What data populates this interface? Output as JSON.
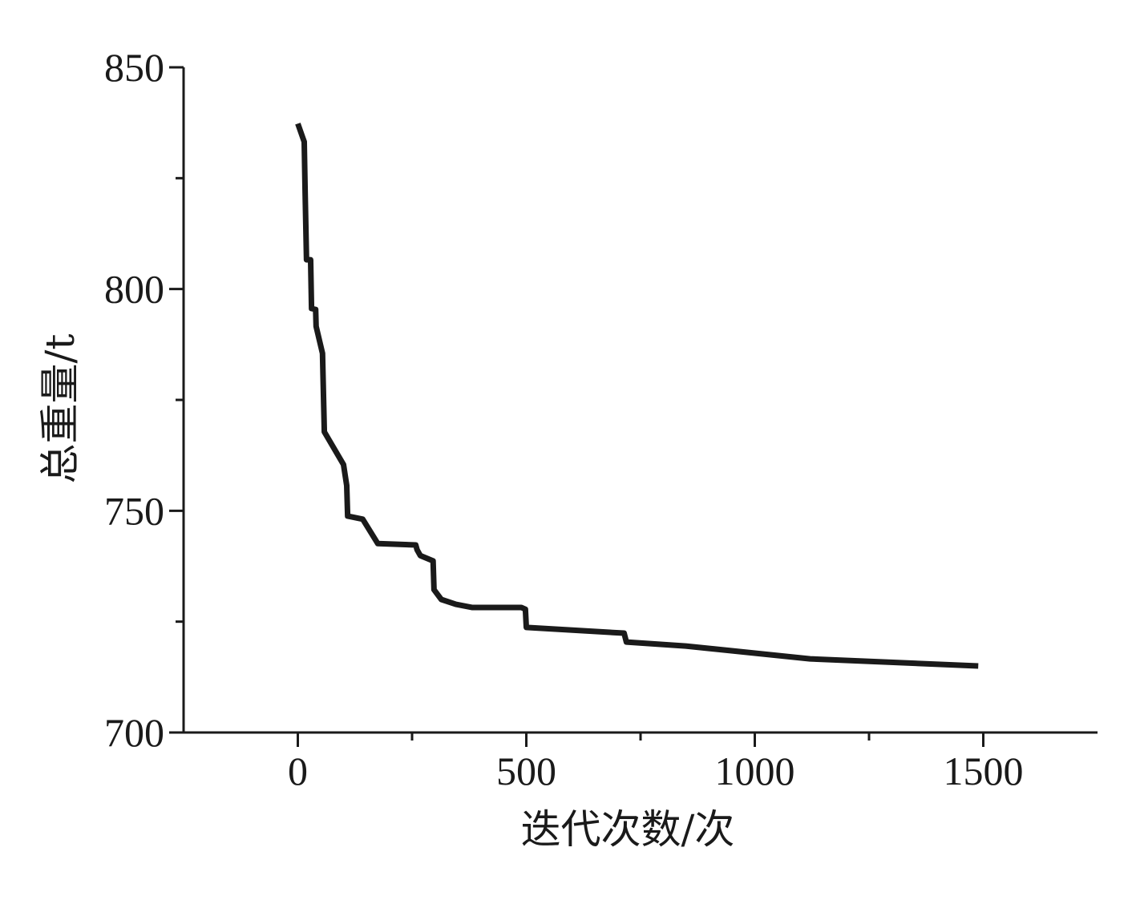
{
  "chart_data": {
    "type": "line",
    "x_label": "迭代次数/次",
    "y_label": "总重量/t",
    "xlim": [
      -250,
      1750
    ],
    "ylim": [
      700,
      850
    ],
    "xticks": [
      0,
      500,
      1000,
      1500
    ],
    "yticks": [
      700,
      750,
      800,
      850
    ],
    "xminorticks": [
      250,
      750,
      1250
    ],
    "yminorticks": [
      725,
      775,
      825
    ],
    "series": [
      {
        "color": "#1a1a1a",
        "x": [
          0,
          14,
          16,
          19,
          28,
          30,
          39,
          40,
          54,
          58,
          100,
          107,
          109,
          142,
          175,
          258,
          261,
          268,
          296,
          298,
          314,
          346,
          381,
          489,
          498,
          500,
          714,
          719,
          849,
          1121,
          1489
        ],
        "values": [
          837.3,
          833.2,
          821.8,
          806.6,
          806.6,
          795.6,
          795.4,
          791.6,
          785.5,
          767.8,
          760.4,
          755.7,
          748.8,
          748.1,
          742.6,
          742.3,
          741.2,
          739.9,
          738.7,
          732.2,
          730.0,
          728.9,
          728.2,
          728.2,
          727.8,
          723.7,
          722.4,
          720.4,
          719.5,
          716.6,
          715.0
        ]
      }
    ]
  }
}
